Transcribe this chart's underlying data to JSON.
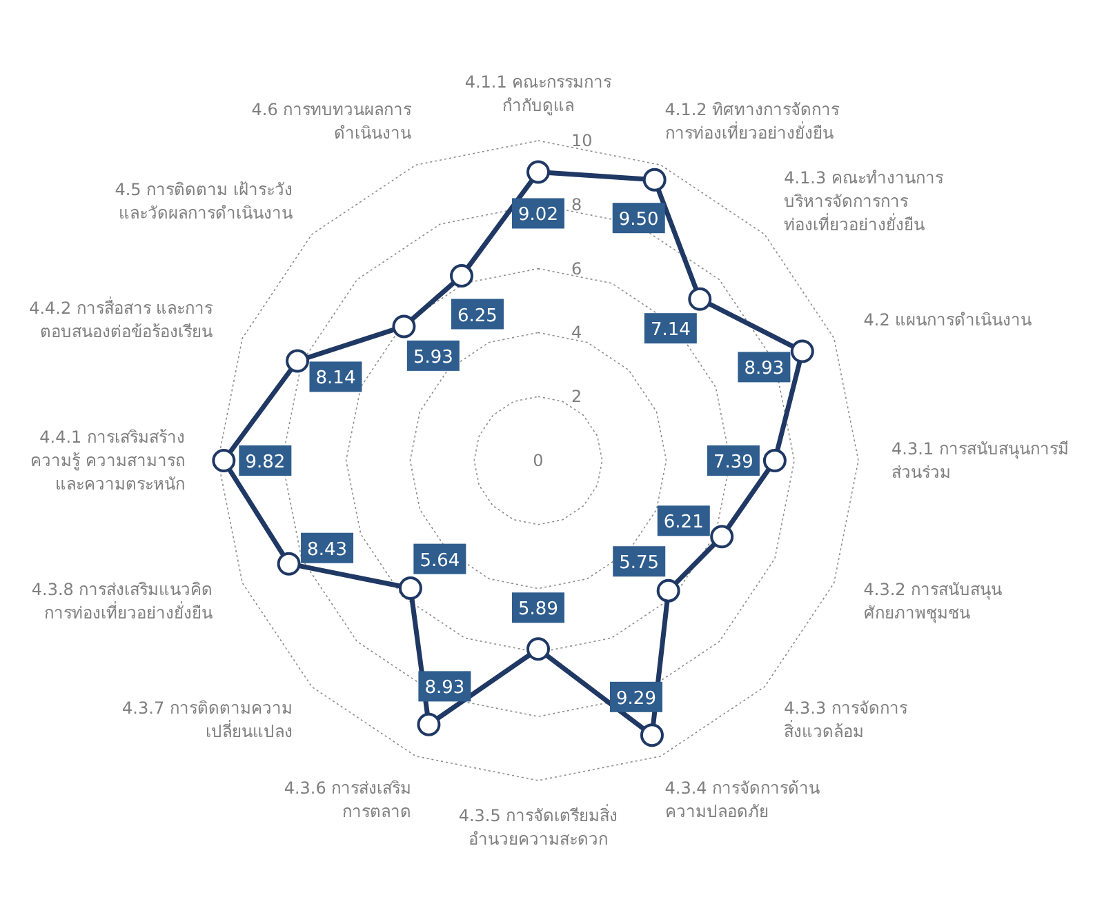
{
  "chart_data": {
    "type": "radar",
    "categories": [
      "4.1.1 คณะกรรมการ\nกำกับดูแล",
      "4.1.2 ทิศทางการจัดการ\nการท่องเที่ยวอย่างยั่งยืน",
      "4.1.3 คณะทำงานการ\nบริหารจัดการการ\nท่องเที่ยวอย่างยั่งยืน",
      "4.2 แผนการดำเนินงาน",
      "4.3.1 การสนับสนุนการมี\nส่วนร่วม",
      "4.3.2 การสนับสนุน\nศักยภาพชุมชน",
      "4.3.3 การจัดการ\nสิ่งแวดล้อม",
      "4.3.4 การจัดการด้าน\nความปลอดภัย",
      "4.3.5 การจัดเตรียมสิ่ง\nอำนวยความสะดวก",
      "4.3.6 การส่งเสริม\nการตลาด",
      "4.3.7 การติดตามความ\nเปลี่ยนแปลง",
      "4.3.8 การส่งเสริมแนวคิด\nการท่องเที่ยวอย่างยั่งยืน",
      "4.4.1 การเสริมสร้าง\nความรู้ ความสามารถ\nและความตระหนัก",
      "4.4.2 การสื่อสาร และการ\nตอบสนองต่อข้อร้องเรียน",
      "4.5 การติดตาม เฝ้าระวัง\nและวัดผลการดำเนินงาน",
      "4.6 การทบทวนผลการ\nดำเนินงาน"
    ],
    "series": [
      {
        "color": "#1f3864",
        "values": [
          9.02,
          9.5,
          7.14,
          8.93,
          7.39,
          6.21,
          5.75,
          9.29,
          5.89,
          8.93,
          5.64,
          8.43,
          9.82,
          8.14,
          5.93,
          6.25
        ],
        "value_labels": [
          "9.02",
          "9.50",
          "7.14",
          "8.93",
          "7.39",
          "6.21",
          "5.75",
          "9.29",
          "5.89",
          "8.93",
          "5.64",
          "8.43",
          "9.82",
          "8.14",
          "5.93",
          "6.25"
        ]
      }
    ],
    "ylim": [
      0,
      10
    ],
    "yticks": [
      0,
      2,
      4,
      6,
      8,
      10
    ],
    "grid": true,
    "marker": "circle"
  }
}
